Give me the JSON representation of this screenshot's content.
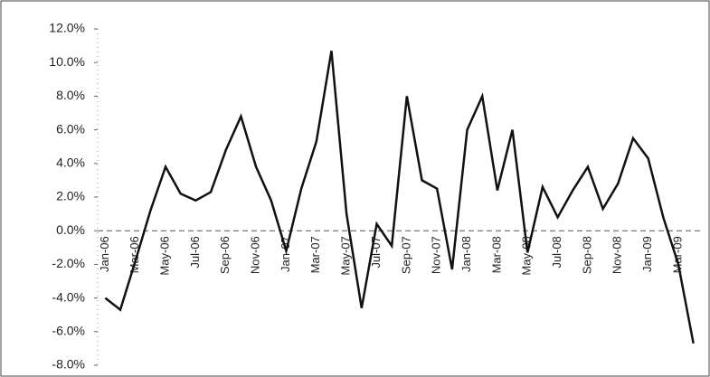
{
  "chart_data": {
    "type": "line",
    "categories": [
      "Jan-06",
      null,
      "Mar-06",
      null,
      "May-06",
      null,
      "Jul-06",
      null,
      "Sep-06",
      null,
      "Nov-06",
      null,
      "Jan-07",
      null,
      "Mar-07",
      null,
      "May-07",
      null,
      "Jul-07",
      null,
      "Sep-07",
      null,
      "Nov-07",
      null,
      "Jan-08",
      null,
      "Mar-08",
      null,
      "May-08",
      null,
      "Jul-08",
      null,
      "Sep-08",
      null,
      "Nov-08",
      null,
      "Jan-09",
      null,
      "Mar-09",
      null
    ],
    "values": [
      -4.0,
      -4.7,
      -1.8,
      1.2,
      3.8,
      2.2,
      1.8,
      2.3,
      4.8,
      6.8,
      3.8,
      1.8,
      -1.2,
      2.5,
      5.3,
      10.7,
      1.0,
      -4.6,
      0.4,
      -0.9,
      8.0,
      3.0,
      2.5,
      -2.3,
      6.0,
      8.0,
      2.4,
      6.0,
      -1.3,
      2.6,
      0.8,
      2.4,
      3.8,
      1.3,
      2.8,
      5.5,
      4.3,
      0.8,
      -2.0,
      -6.7
    ],
    "color": "#111111",
    "ylim": [
      -8,
      12
    ],
    "yticks": [
      {
        "value": -8,
        "label": "-8.0%"
      },
      {
        "value": -6,
        "label": "-6.0%"
      },
      {
        "value": -4,
        "label": "-4.0%"
      },
      {
        "value": -2,
        "label": "-2.0%"
      },
      {
        "value": 0,
        "label": "0.0%"
      },
      {
        "value": 2,
        "label": "2.0%"
      },
      {
        "value": 4,
        "label": "4.0%"
      },
      {
        "value": 6,
        "label": "6.0%"
      },
      {
        "value": 8,
        "label": "8.0%"
      },
      {
        "value": 10,
        "label": "10.0%"
      },
      {
        "value": 12,
        "label": "12.0%"
      }
    ]
  }
}
